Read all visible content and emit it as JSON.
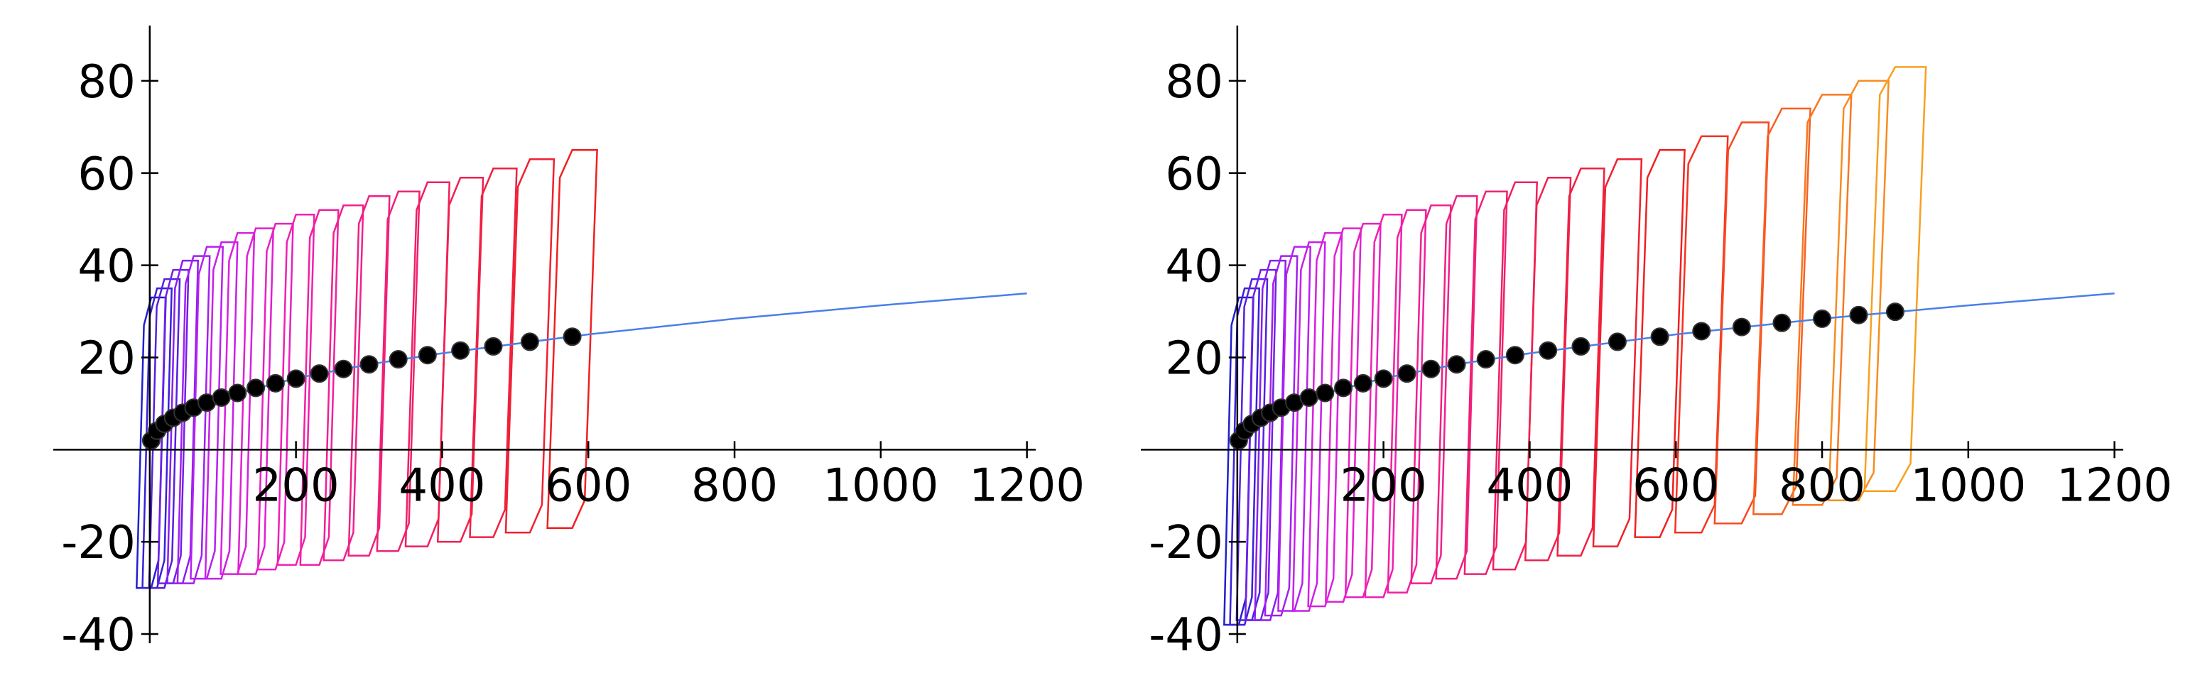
{
  "chart_data": [
    {
      "type": "scatter",
      "xlim": [
        -132,
        1212
      ],
      "ylim": [
        -42,
        92
      ],
      "xticks": [
        200,
        400,
        600,
        800,
        1000,
        1200
      ],
      "yticks": [
        -40,
        -20,
        20,
        40,
        60,
        80
      ],
      "loops": [
        {
          "color": "#2020d0",
          "x": [
            -18,
            -8,
            2,
            22,
            12,
            2
          ],
          "values": [
            -30,
            27,
            33,
            33,
            -24,
            -30
          ]
        },
        {
          "color": "#3a20d8",
          "x": [
            -10,
            0,
            10,
            30,
            20,
            10
          ],
          "values": [
            -30,
            29,
            35,
            35,
            -24,
            -30
          ]
        },
        {
          "color": "#5520e0",
          "x": [
            -1,
            9.5,
            20,
            41,
            30.5,
            20
          ],
          "values": [
            -30,
            31,
            37,
            37,
            -24,
            -30
          ]
        },
        {
          "color": "#7020e8",
          "x": [
            11,
            21.5,
            32,
            53,
            42.5,
            32
          ],
          "values": [
            -29,
            33,
            39,
            39,
            -23,
            -29
          ]
        },
        {
          "color": "#8820f0",
          "x": [
            24,
            34.5,
            45,
            66,
            55.5,
            45
          ],
          "values": [
            -29,
            35,
            41,
            41,
            -23,
            -29
          ]
        },
        {
          "color": "#a020f0",
          "x": [
            38,
            49,
            60,
            82,
            71,
            60
          ],
          "values": [
            -29,
            36,
            42,
            42,
            -23,
            -29
          ]
        },
        {
          "color": "#b820f0",
          "x": [
            56,
            67,
            78,
            100,
            89,
            78
          ],
          "values": [
            -28,
            38,
            44,
            44,
            -22,
            -28
          ]
        },
        {
          "color": "#c820e8",
          "x": [
            76,
            87,
            98,
            120,
            109,
            98
          ],
          "values": [
            -28,
            39,
            45,
            45,
            -22,
            -28
          ]
        },
        {
          "color": "#d820e0",
          "x": [
            97,
            108.5,
            120,
            143,
            131.5,
            120
          ],
          "values": [
            -27,
            41,
            47,
            47,
            -21,
            -27
          ]
        },
        {
          "color": "#e020d0",
          "x": [
            121,
            133,
            145,
            169,
            157,
            145
          ],
          "values": [
            -27,
            42,
            48,
            48,
            -21,
            -27
          ]
        },
        {
          "color": "#e820c0",
          "x": [
            148,
            160,
            172,
            196,
            184,
            172
          ],
          "values": [
            -26,
            43,
            49,
            49,
            -20,
            -26
          ]
        },
        {
          "color": "#f020b0",
          "x": [
            175,
            187.5,
            200,
            225,
            212.5,
            200
          ],
          "values": [
            -25,
            45,
            51,
            51,
            -19,
            -25
          ]
        },
        {
          "color": "#f020a0",
          "x": [
            206,
            219,
            232,
            258,
            245,
            232
          ],
          "values": [
            -25,
            46,
            52,
            52,
            -19,
            -25
          ]
        },
        {
          "color": "#f02090",
          "x": [
            238,
            251.5,
            265,
            292,
            278.5,
            265
          ],
          "values": [
            -24,
            47,
            53,
            53,
            -18,
            -24
          ]
        },
        {
          "color": "#f02080",
          "x": [
            272,
            286,
            300,
            328,
            314,
            300
          ],
          "values": [
            -23,
            49,
            55,
            55,
            -17,
            -23
          ]
        },
        {
          "color": "#f02070",
          "x": [
            311,
            325.5,
            340,
            369,
            354.5,
            340
          ],
          "values": [
            -22,
            50,
            56,
            56,
            -16,
            -22
          ]
        },
        {
          "color": "#f02060",
          "x": [
            350,
            365,
            380,
            410,
            395,
            380
          ],
          "values": [
            -21,
            52,
            58,
            58,
            -15,
            -21
          ]
        },
        {
          "color": "#f02050",
          "x": [
            394,
            409.5,
            425,
            456,
            440.5,
            425
          ],
          "values": [
            -20,
            53,
            59,
            59,
            -14,
            -20
          ]
        },
        {
          "color": "#f02040",
          "x": [
            438,
            454,
            470,
            502,
            486,
            470
          ],
          "values": [
            -19,
            55,
            61,
            61,
            -13,
            -19
          ]
        },
        {
          "color": "#f02030",
          "x": [
            487,
            503.5,
            520,
            553,
            536.5,
            520
          ],
          "values": [
            -18,
            57,
            63,
            63,
            -12,
            -18
          ]
        },
        {
          "color": "#f02020",
          "x": [
            544,
            561,
            578,
            612,
            595,
            578
          ],
          "values": [
            -17,
            59,
            65,
            65,
            -11,
            -17
          ]
        }
      ],
      "points": {
        "color": "#000000",
        "x": [
          2,
          10,
          20,
          32,
          45,
          60,
          78,
          98,
          120,
          145,
          172,
          200,
          232,
          265,
          300,
          340,
          380,
          425,
          470,
          520,
          578
        ],
        "values": [
          2.0,
          4.1,
          5.6,
          6.9,
          8.0,
          9.1,
          10.2,
          11.3,
          12.3,
          13.4,
          14.4,
          15.4,
          16.5,
          17.5,
          18.5,
          19.6,
          20.5,
          21.5,
          22.4,
          23.4,
          24.5
        ]
      },
      "fit": {
        "color": "#4a7fe8",
        "x": [
          0,
          25,
          50,
          100,
          200,
          300,
          400,
          600,
          800,
          1000,
          1200
        ],
        "values": [
          0,
          6.2,
          8.4,
          11.4,
          15.5,
          18.5,
          20.9,
          25.0,
          28.4,
          31.3,
          33.9
        ]
      }
    },
    {
      "type": "scatter",
      "xlim": [
        -132,
        1212
      ],
      "ylim": [
        -42,
        92
      ],
      "xticks": [
        200,
        400,
        600,
        800,
        1000,
        1200
      ],
      "yticks": [
        -40,
        -20,
        20,
        40,
        60,
        80
      ],
      "loops": [
        {
          "color": "#2020d0",
          "x": [
            -18,
            -8,
            2,
            22,
            12,
            2
          ],
          "values": [
            -38,
            27,
            33,
            33,
            -32,
            -38
          ]
        },
        {
          "color": "#3a20d8",
          "x": [
            -10,
            0,
            10,
            30,
            20,
            10
          ],
          "values": [
            -38,
            29,
            35,
            35,
            -32,
            -38
          ]
        },
        {
          "color": "#5520e0",
          "x": [
            -1,
            9.5,
            20,
            41,
            30.5,
            20
          ],
          "values": [
            -37,
            31,
            37,
            37,
            -31,
            -37
          ]
        },
        {
          "color": "#7020e8",
          "x": [
            11,
            21.5,
            32,
            53,
            42.5,
            32
          ],
          "values": [
            -37,
            33,
            39,
            39,
            -31,
            -37
          ]
        },
        {
          "color": "#8820f0",
          "x": [
            24,
            34.5,
            45,
            66,
            55.5,
            45
          ],
          "values": [
            -37,
            35,
            41,
            41,
            -31,
            -37
          ]
        },
        {
          "color": "#a020f0",
          "x": [
            38,
            49,
            60,
            82,
            71,
            60
          ],
          "values": [
            -36,
            36,
            42,
            42,
            -30,
            -36
          ]
        },
        {
          "color": "#b820f0",
          "x": [
            56,
            67,
            78,
            100,
            89,
            78
          ],
          "values": [
            -35,
            38,
            44,
            44,
            -29,
            -35
          ]
        },
        {
          "color": "#c820e8",
          "x": [
            76,
            87,
            98,
            120,
            109,
            98
          ],
          "values": [
            -35,
            39,
            45,
            45,
            -29,
            -35
          ]
        },
        {
          "color": "#d820e0",
          "x": [
            97,
            108.5,
            120,
            143,
            131.5,
            120
          ],
          "values": [
            -34,
            41,
            47,
            47,
            -28,
            -34
          ]
        },
        {
          "color": "#e020d0",
          "x": [
            121,
            133,
            145,
            169,
            157,
            145
          ],
          "values": [
            -33,
            42,
            48,
            48,
            -27,
            -33
          ]
        },
        {
          "color": "#e820c0",
          "x": [
            148,
            160,
            172,
            196,
            184,
            172
          ],
          "values": [
            -32,
            43,
            49,
            49,
            -26,
            -32
          ]
        },
        {
          "color": "#f020b0",
          "x": [
            175,
            187.5,
            200,
            225,
            212.5,
            200
          ],
          "values": [
            -32,
            45,
            51,
            51,
            -26,
            -32
          ]
        },
        {
          "color": "#f020a0",
          "x": [
            206,
            219,
            232,
            258,
            245,
            232
          ],
          "values": [
            -31,
            46,
            52,
            52,
            -25,
            -31
          ]
        },
        {
          "color": "#f02090",
          "x": [
            238,
            251.5,
            265,
            292,
            278.5,
            265
          ],
          "values": [
            -29,
            47,
            53,
            53,
            -23,
            -29
          ]
        },
        {
          "color": "#f02080",
          "x": [
            272,
            286,
            300,
            328,
            314,
            300
          ],
          "values": [
            -28,
            49,
            55,
            55,
            -22,
            -28
          ]
        },
        {
          "color": "#f02070",
          "x": [
            311,
            325.5,
            340,
            369,
            354.5,
            340
          ],
          "values": [
            -27,
            50,
            56,
            56,
            -21,
            -27
          ]
        },
        {
          "color": "#f02060",
          "x": [
            350,
            365,
            380,
            410,
            395,
            380
          ],
          "values": [
            -26,
            52,
            58,
            58,
            -20,
            -26
          ]
        },
        {
          "color": "#f02050",
          "x": [
            394,
            409.5,
            425,
            456,
            440.5,
            425
          ],
          "values": [
            -24,
            53,
            59,
            59,
            -18,
            -24
          ]
        },
        {
          "color": "#f02040",
          "x": [
            438,
            454,
            470,
            502,
            486,
            470
          ],
          "values": [
            -23,
            55,
            61,
            61,
            -17,
            -23
          ]
        },
        {
          "color": "#f02030",
          "x": [
            487,
            503.5,
            520,
            553,
            536.5,
            520
          ],
          "values": [
            -21,
            57,
            63,
            63,
            -15,
            -21
          ]
        },
        {
          "color": "#f02020",
          "x": [
            544,
            561,
            578,
            612,
            595,
            578
          ],
          "values": [
            -19,
            59,
            65,
            65,
            -13,
            -19
          ]
        },
        {
          "color": "#f83020",
          "x": [
            599,
            617,
            635,
            671,
            653,
            635
          ],
          "values": [
            -18,
            62,
            68,
            68,
            -12,
            -18
          ]
        },
        {
          "color": "#f84820",
          "x": [
            653,
            671.5,
            690,
            727,
            708.5,
            690
          ],
          "values": [
            -16,
            65,
            71,
            71,
            -10,
            -16
          ]
        },
        {
          "color": "#f86020",
          "x": [
            706,
            725.5,
            745,
            784,
            764.5,
            745
          ],
          "values": [
            -14,
            68,
            74,
            74,
            -8,
            -14
          ]
        },
        {
          "color": "#f87820",
          "x": [
            760,
            780,
            800,
            840,
            820,
            800
          ],
          "values": [
            -12,
            71,
            77,
            77,
            -6,
            -12
          ]
        },
        {
          "color": "#f88c20",
          "x": [
            809,
            829.5,
            850,
            891,
            870.5,
            850
          ],
          "values": [
            -11,
            74,
            80,
            80,
            -5,
            -11
          ]
        },
        {
          "color": "#f8a020",
          "x": [
            858,
            879,
            900,
            942,
            921,
            900
          ],
          "values": [
            -9,
            77,
            83,
            83,
            -3,
            -9
          ]
        }
      ],
      "points": {
        "color": "#000000",
        "x": [
          2,
          10,
          20,
          32,
          45,
          60,
          78,
          98,
          120,
          145,
          172,
          200,
          232,
          265,
          300,
          340,
          380,
          425,
          470,
          520,
          578,
          635,
          690,
          745,
          800,
          850,
          900
        ],
        "values": [
          2.0,
          4.1,
          5.6,
          6.9,
          8.0,
          9.1,
          10.2,
          11.3,
          12.3,
          13.4,
          14.4,
          15.4,
          16.5,
          17.5,
          18.5,
          19.6,
          20.5,
          21.5,
          22.4,
          23.4,
          24.5,
          25.7,
          26.6,
          27.5,
          28.4,
          29.2,
          29.9
        ]
      },
      "fit": {
        "color": "#4a7fe8",
        "x": [
          0,
          25,
          50,
          100,
          200,
          300,
          400,
          600,
          800,
          1000,
          1200
        ],
        "values": [
          0,
          6.2,
          8.4,
          11.4,
          15.5,
          18.5,
          20.9,
          25.0,
          28.4,
          31.3,
          33.9
        ]
      }
    }
  ]
}
